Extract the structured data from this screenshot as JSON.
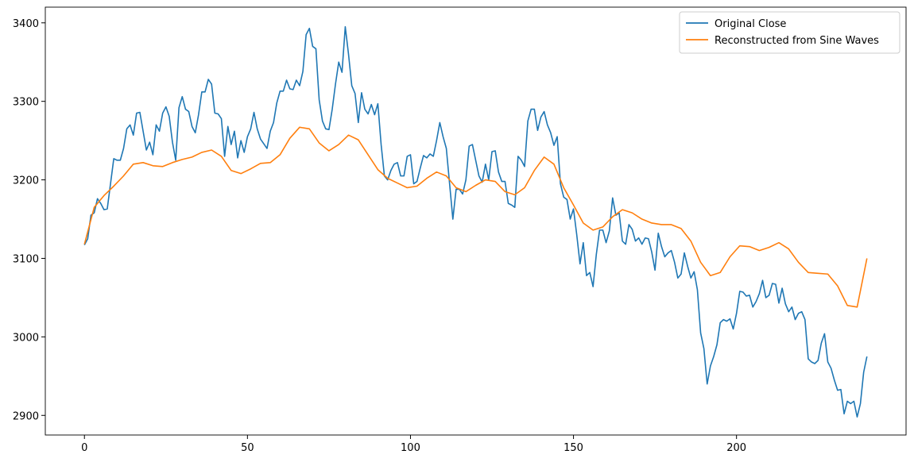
{
  "chart_data": {
    "type": "line",
    "xlim": [
      -12,
      252
    ],
    "xticks": [
      0,
      50,
      100,
      150,
      200
    ],
    "ylim": [
      2875,
      3420
    ],
    "yticks": [
      2900,
      3000,
      3100,
      3200,
      3300,
      3400
    ],
    "legend": "upper right",
    "series": [
      {
        "name": "Original Close",
        "color": "#1f77b4",
        "x": [
          0,
          1,
          2,
          3,
          4,
          5,
          6,
          7,
          8,
          9,
          10,
          11,
          12,
          13,
          14,
          15,
          16,
          17,
          18,
          19,
          20,
          21,
          22,
          23,
          24,
          25,
          26,
          27,
          28,
          29,
          30,
          31,
          32,
          33,
          34,
          35,
          36,
          37,
          38,
          39,
          40,
          41,
          42,
          43,
          44,
          45,
          46,
          47,
          48,
          49,
          50,
          51,
          52,
          53,
          54,
          55,
          56,
          57,
          58,
          59,
          60,
          61,
          62,
          63,
          64,
          65,
          66,
          67,
          68,
          69,
          70,
          71,
          72,
          73,
          74,
          75,
          76,
          77,
          78,
          79,
          80,
          81,
          82,
          83,
          84,
          85,
          86,
          87,
          88,
          89,
          90,
          91,
          92,
          93,
          94,
          95,
          96,
          97,
          98,
          99,
          100,
          101,
          102,
          103,
          104,
          105,
          106,
          107,
          108,
          109,
          110,
          111,
          112,
          113,
          114,
          115,
          116,
          117,
          118,
          119,
          120,
          121,
          122,
          123,
          124,
          125,
          126,
          127,
          128,
          129,
          130,
          131,
          132,
          133,
          134,
          135,
          136,
          137,
          138,
          139,
          140,
          141,
          142,
          143,
          144,
          145,
          146,
          147,
          148,
          149,
          150,
          151,
          152,
          153,
          154,
          155,
          156,
          157,
          158,
          159,
          160,
          161,
          162,
          163,
          164,
          165,
          166,
          167,
          168,
          169,
          170,
          171,
          172,
          173,
          174,
          175,
          176,
          177,
          178,
          179,
          180,
          181,
          182,
          183,
          184,
          185,
          186,
          187,
          188,
          189,
          190,
          191,
          192,
          193,
          194,
          195,
          196,
          197,
          198,
          199,
          200,
          201,
          202,
          203,
          204,
          205,
          206,
          207,
          208,
          209,
          210,
          211,
          212,
          213,
          214,
          215,
          216,
          217,
          218,
          219,
          220,
          221,
          222,
          223,
          224,
          225,
          226,
          227,
          228,
          229,
          230,
          231,
          232,
          233,
          234,
          235,
          236,
          237,
          238,
          239,
          240
        ],
        "values": [
          3117,
          3125,
          3155,
          3158,
          3176,
          3170,
          3162,
          3163,
          3195,
          3227,
          3225,
          3225,
          3240,
          3265,
          3270,
          3257,
          3285,
          3286,
          3262,
          3238,
          3248,
          3232,
          3270,
          3262,
          3285,
          3293,
          3281,
          3248,
          3225,
          3292,
          3306,
          3290,
          3287,
          3268,
          3260,
          3283,
          3312,
          3312,
          3328,
          3322,
          3285,
          3284,
          3278,
          3230,
          3268,
          3245,
          3262,
          3228,
          3250,
          3235,
          3255,
          3265,
          3286,
          3265,
          3252,
          3246,
          3240,
          3262,
          3273,
          3298,
          3313,
          3313,
          3327,
          3316,
          3315,
          3327,
          3320,
          3338,
          3385,
          3393,
          3370,
          3367,
          3302,
          3275,
          3265,
          3264,
          3290,
          3322,
          3350,
          3337,
          3395,
          3360,
          3320,
          3310,
          3273,
          3311,
          3290,
          3284,
          3296,
          3283,
          3297,
          3245,
          3205,
          3200,
          3212,
          3220,
          3222,
          3205,
          3205,
          3230,
          3232,
          3195,
          3198,
          3215,
          3231,
          3228,
          3233,
          3230,
          3250,
          3273,
          3255,
          3240,
          3195,
          3150,
          3188,
          3188,
          3182,
          3200,
          3243,
          3245,
          3225,
          3205,
          3197,
          3220,
          3200,
          3236,
          3237,
          3210,
          3198,
          3198,
          3170,
          3168,
          3165,
          3230,
          3225,
          3217,
          3275,
          3290,
          3290,
          3263,
          3280,
          3287,
          3270,
          3260,
          3244,
          3255,
          3195,
          3178,
          3175,
          3150,
          3163,
          3130,
          3093,
          3120,
          3078,
          3082,
          3064,
          3105,
          3136,
          3136,
          3120,
          3135,
          3177,
          3155,
          3158,
          3122,
          3118,
          3143,
          3137,
          3122,
          3126,
          3118,
          3126,
          3125,
          3108,
          3085,
          3132,
          3115,
          3102,
          3107,
          3110,
          3095,
          3075,
          3080,
          3107,
          3090,
          3075,
          3083,
          3060,
          3005,
          2985,
          2940,
          2963,
          2975,
          2990,
          3018,
          3022,
          3020,
          3023,
          3010,
          3030,
          3058,
          3057,
          3052,
          3053,
          3038,
          3045,
          3055,
          3072,
          3050,
          3053,
          3068,
          3067,
          3043,
          3062,
          3042,
          3032,
          3038,
          3022,
          3030,
          3032,
          3022,
          2972,
          2968,
          2966,
          2970,
          2992,
          3004,
          2968,
          2960,
          2945,
          2932,
          2933,
          2902,
          2918,
          2915,
          2918,
          2898,
          2915,
          2955,
          2975
        ]
      },
      {
        "name": "Reconstructed from Sine Waves",
        "color": "#ff7f0e",
        "x": [
          0,
          3,
          6,
          9,
          12,
          15,
          18,
          21,
          24,
          27,
          30,
          33,
          36,
          39,
          42,
          45,
          48,
          51,
          54,
          57,
          60,
          63,
          66,
          69,
          72,
          75,
          78,
          81,
          84,
          87,
          90,
          93,
          96,
          99,
          102,
          105,
          108,
          111,
          114,
          117,
          120,
          123,
          126,
          129,
          132,
          135,
          138,
          141,
          144,
          147,
          150,
          153,
          156,
          159,
          162,
          165,
          168,
          171,
          174,
          177,
          180,
          183,
          186,
          189,
          192,
          195,
          198,
          201,
          204,
          207,
          210,
          213,
          216,
          219,
          222,
          225,
          228,
          231,
          234,
          237,
          240
        ],
        "values": [
          3118,
          3165,
          3180,
          3192,
          3205,
          3220,
          3222,
          3218,
          3217,
          3222,
          3226,
          3229,
          3235,
          3238,
          3230,
          3212,
          3208,
          3214,
          3221,
          3222,
          3232,
          3253,
          3267,
          3265,
          3247,
          3237,
          3245,
          3257,
          3251,
          3232,
          3213,
          3202,
          3196,
          3190,
          3192,
          3202,
          3210,
          3205,
          3190,
          3185,
          3193,
          3200,
          3198,
          3185,
          3181,
          3190,
          3212,
          3229,
          3220,
          3190,
          3168,
          3145,
          3136,
          3140,
          3153,
          3162,
          3158,
          3150,
          3145,
          3143,
          3143,
          3138,
          3122,
          3095,
          3078,
          3082,
          3102,
          3116,
          3115,
          3110,
          3114,
          3120,
          3112,
          3095,
          3082,
          3081,
          3080,
          3065,
          3040,
          3038,
          3100
        ]
      }
    ]
  }
}
